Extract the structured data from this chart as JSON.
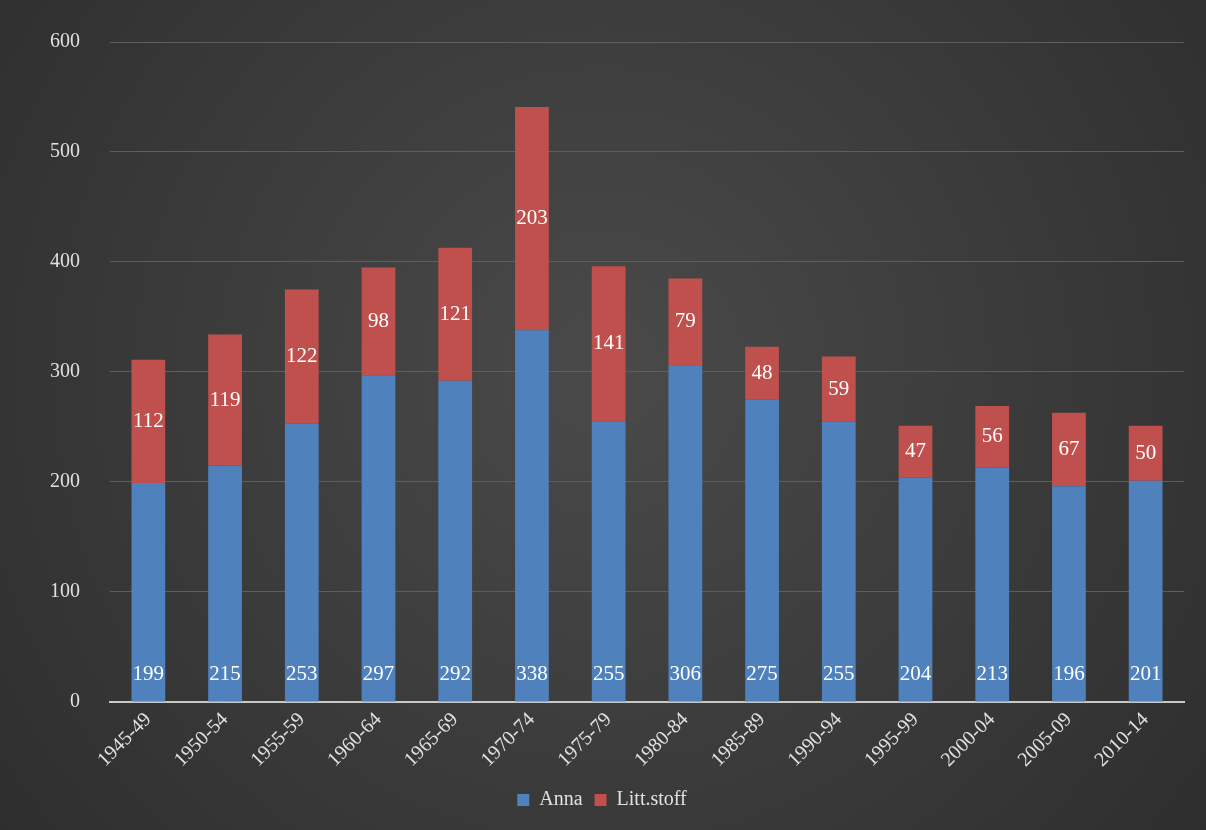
{
  "chart_data": {
    "type": "bar",
    "stacked": true,
    "categories": [
      "1945-49",
      "1950-54",
      "1955-59",
      "1960-64",
      "1965-69",
      "1970-74",
      "1975-79",
      "1980-84",
      "1985-89",
      "1990-94",
      "1995-99",
      "2000-04",
      "2005-09",
      "2010-14"
    ],
    "series": [
      {
        "name": "Anna",
        "color": "#4f81bd",
        "values": [
          199,
          215,
          253,
          297,
          292,
          338,
          255,
          306,
          275,
          255,
          204,
          213,
          196,
          201
        ]
      },
      {
        "name": "Litt.stoff",
        "color": "#c0504d",
        "values": [
          112,
          119,
          122,
          98,
          121,
          203,
          141,
          79,
          48,
          59,
          47,
          56,
          67,
          50
        ]
      }
    ],
    "ylim": [
      0,
      600
    ],
    "yticks": [
      0,
      100,
      200,
      300,
      400,
      500,
      600
    ],
    "grid": "y",
    "legend": "bottom",
    "data_labels": true
  }
}
